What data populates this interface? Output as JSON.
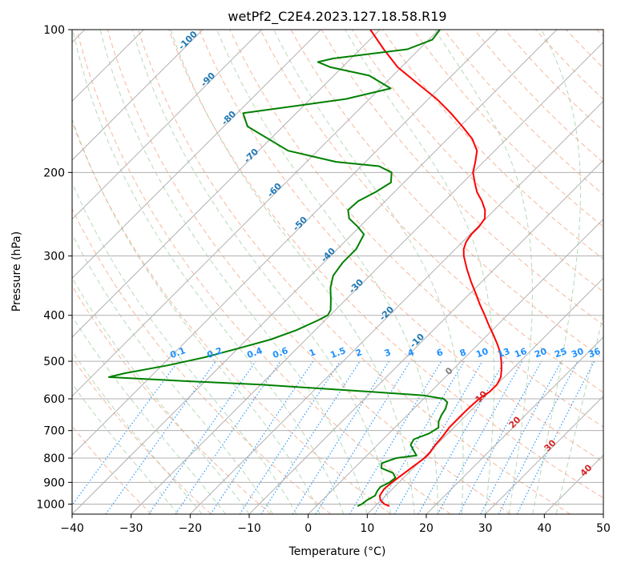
{
  "chart_data": {
    "type": "line",
    "subtype": "skew-T log-P diagram",
    "title": "wetPf2_C2E4.2023.127.18.58.R19",
    "xlabel": "Temperature (°C)",
    "ylabel": "Pressure (hPa)",
    "xlim": [
      -40,
      50
    ],
    "ylim": [
      1050,
      100
    ],
    "y_scale": "log",
    "x_ticks": [
      -40,
      -30,
      -20,
      -10,
      0,
      10,
      20,
      30,
      40,
      50
    ],
    "x_tick_labels": [
      "−40",
      "−30",
      "−20",
      "−10",
      "0",
      "10",
      "20",
      "30",
      "40",
      "50"
    ],
    "y_ticks": [
      1000,
      900,
      800,
      700,
      600,
      500,
      400,
      300,
      200,
      100
    ],
    "y_tick_labels": [
      "1000",
      "900",
      "800",
      "700",
      "600",
      "500",
      "400",
      "300",
      "200",
      "100"
    ],
    "grid": true,
    "series": [
      {
        "role": "temperature",
        "color": "#ff0000",
        "points": [
          [
            1010,
            12.4
          ],
          [
            1000,
            11.2
          ],
          [
            980,
            9.8
          ],
          [
            960,
            9.0
          ],
          [
            930,
            8.6
          ],
          [
            900,
            8.8
          ],
          [
            870,
            9.2
          ],
          [
            840,
            9.6
          ],
          [
            800,
            10.2
          ],
          [
            780,
            10.2
          ],
          [
            750,
            9.8
          ],
          [
            720,
            9.6
          ],
          [
            690,
            9.2
          ],
          [
            660,
            9.2
          ],
          [
            630,
            9.2
          ],
          [
            600,
            9.4
          ],
          [
            580,
            10.0
          ],
          [
            560,
            10.0
          ],
          [
            540,
            9.4
          ],
          [
            520,
            8.2
          ],
          [
            500,
            6.8
          ],
          [
            480,
            5.2
          ],
          [
            460,
            3.2
          ],
          [
            440,
            1.0
          ],
          [
            420,
            -1.4
          ],
          [
            400,
            -3.8
          ],
          [
            380,
            -6.4
          ],
          [
            360,
            -9.0
          ],
          [
            340,
            -11.8
          ],
          [
            320,
            -14.6
          ],
          [
            300,
            -17.4
          ],
          [
            290,
            -18.6
          ],
          [
            280,
            -19.4
          ],
          [
            270,
            -19.8
          ],
          [
            260,
            -19.8
          ],
          [
            250,
            -20.2
          ],
          [
            240,
            -21.6
          ],
          [
            230,
            -23.6
          ],
          [
            220,
            -26.0
          ],
          [
            210,
            -28.0
          ],
          [
            200,
            -30.0
          ],
          [
            190,
            -31.4
          ],
          [
            180,
            -33.0
          ],
          [
            170,
            -35.8
          ],
          [
            160,
            -39.6
          ],
          [
            150,
            -43.8
          ],
          [
            140,
            -48.6
          ],
          [
            130,
            -54.4
          ],
          [
            120,
            -60.6
          ],
          [
            110,
            -66.0
          ],
          [
            100,
            -71.6
          ]
        ]
      },
      {
        "role": "dewpoint",
        "color": "#008000",
        "points": [
          [
            1010,
            7.0
          ],
          [
            1000,
            7.4
          ],
          [
            980,
            7.6
          ],
          [
            960,
            8.2
          ],
          [
            940,
            7.8
          ],
          [
            920,
            7.6
          ],
          [
            900,
            8.4
          ],
          [
            880,
            8.6
          ],
          [
            860,
            7.4
          ],
          [
            840,
            4.6
          ],
          [
            820,
            3.8
          ],
          [
            800,
            5.4
          ],
          [
            790,
            8.4
          ],
          [
            770,
            7.0
          ],
          [
            750,
            5.6
          ],
          [
            730,
            5.2
          ],
          [
            710,
            6.8
          ],
          [
            690,
            7.4
          ],
          [
            670,
            6.4
          ],
          [
            650,
            5.8
          ],
          [
            630,
            5.4
          ],
          [
            610,
            4.6
          ],
          [
            600,
            3.4
          ],
          [
            590,
            -0.6
          ],
          [
            580,
            -10.0
          ],
          [
            570,
            -20.0
          ],
          [
            560,
            -30.0
          ],
          [
            550,
            -44.0
          ],
          [
            540,
            -57.0
          ],
          [
            530,
            -55.0
          ],
          [
            510,
            -49.0
          ],
          [
            490,
            -44.0
          ],
          [
            470,
            -40.0
          ],
          [
            450,
            -36.0
          ],
          [
            430,
            -33.2
          ],
          [
            410,
            -31.2
          ],
          [
            400,
            -30.4
          ],
          [
            390,
            -30.8
          ],
          [
            370,
            -32.6
          ],
          [
            350,
            -34.6
          ],
          [
            330,
            -36.2
          ],
          [
            310,
            -36.8
          ],
          [
            290,
            -36.8
          ],
          [
            270,
            -38.0
          ],
          [
            260,
            -40.4
          ],
          [
            250,
            -43.2
          ],
          [
            240,
            -44.8
          ],
          [
            230,
            -44.6
          ],
          [
            220,
            -43.2
          ],
          [
            210,
            -42.2
          ],
          [
            200,
            -43.8
          ],
          [
            194,
            -47.0
          ],
          [
            190,
            -55.0
          ],
          [
            180,
            -65.0
          ],
          [
            160,
            -76.0
          ],
          [
            150,
            -79.0
          ],
          [
            140,
            -64.0
          ],
          [
            133,
            -58.2
          ],
          [
            125,
            -64.0
          ],
          [
            120,
            -72.0
          ],
          [
            117,
            -75.0
          ],
          [
            115,
            -73.0
          ],
          [
            110,
            -62.0
          ],
          [
            105,
            -59.4
          ],
          [
            100,
            -59.8
          ]
        ]
      }
    ],
    "dry_adiabat_labels": [
      "-100",
      "-90",
      "-80",
      "-70",
      "-60",
      "-50",
      "-40",
      "-30",
      "-20",
      "-10"
    ],
    "moist_adiabat_labels": [
      "0",
      "10",
      "20",
      "30",
      "40"
    ],
    "mixing_ratio_labels": [
      "0.1",
      "0.2",
      "0.4",
      "0.6",
      "1",
      "1.5",
      "2",
      "3",
      "4",
      "6",
      "8",
      "10",
      "13",
      "16",
      "20",
      "25",
      "30",
      "36"
    ]
  }
}
